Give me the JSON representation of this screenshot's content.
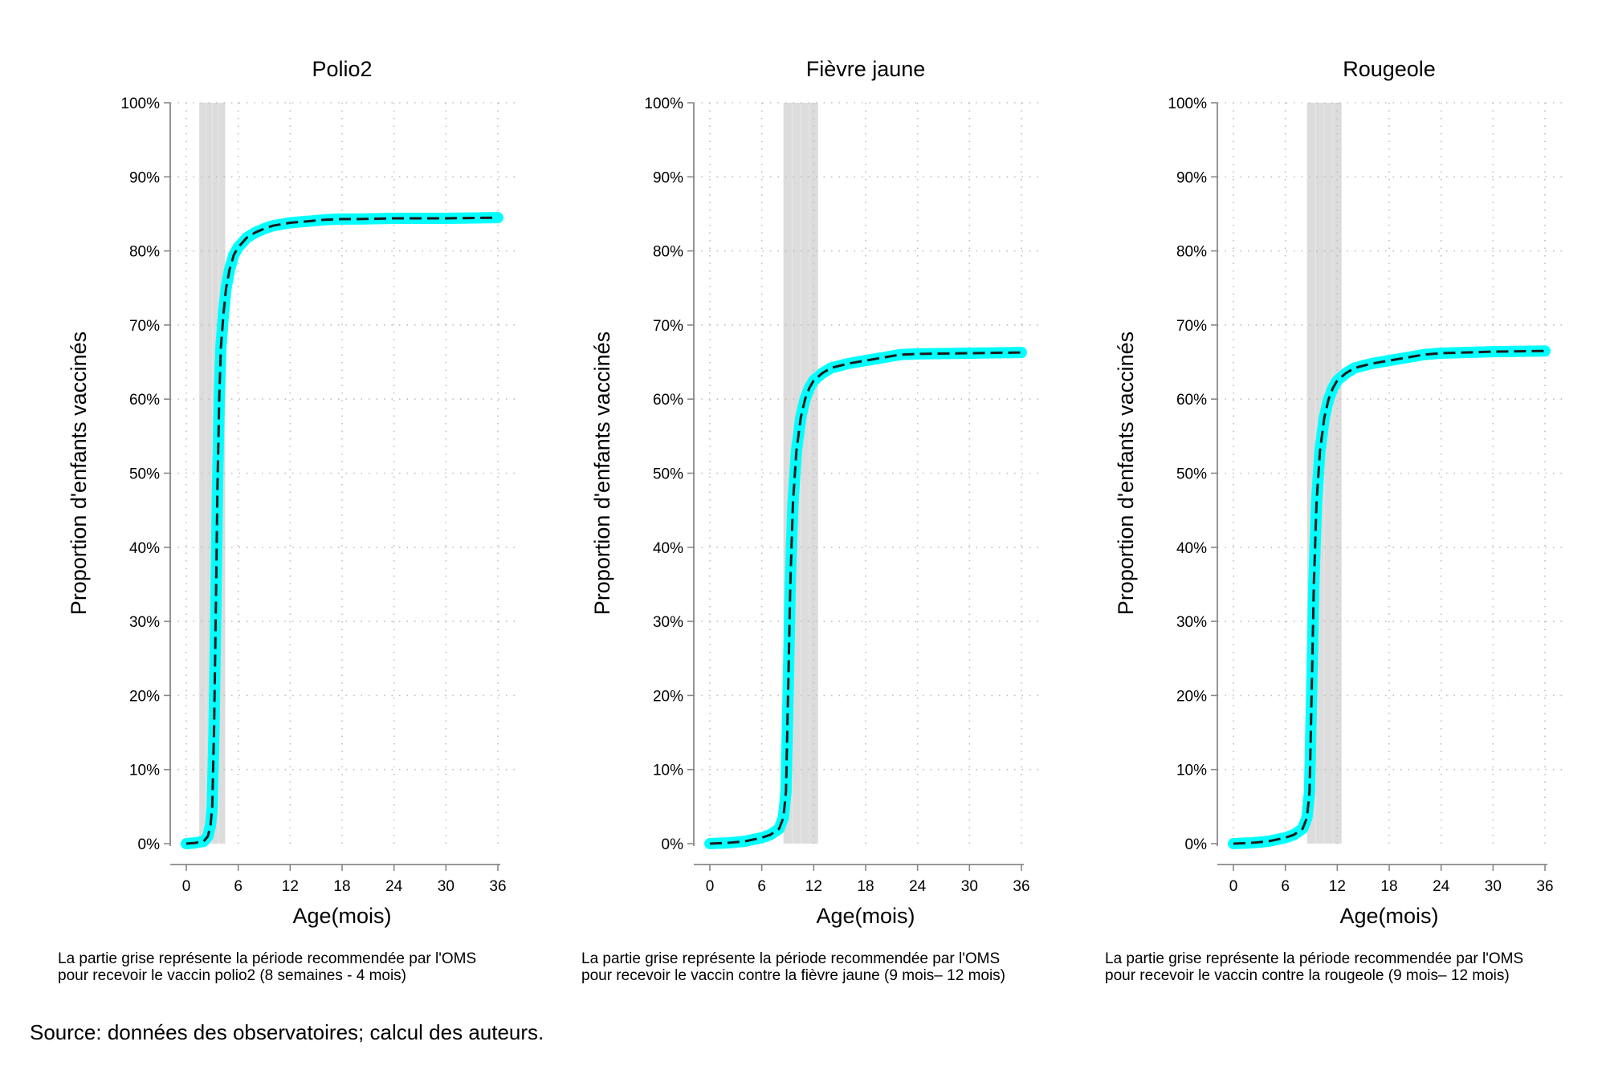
{
  "source": "Source: données des observatoires; calcul des auteurs.",
  "colors": {
    "band": "#dcdcdc",
    "curve_outer": "#00ffff",
    "curve_inner": "#1a1a1a",
    "axis": "#888888",
    "grid": "#bdbdbd"
  },
  "chart_data": [
    {
      "type": "line",
      "title": "Polio2",
      "xlabel": "Age(mois)",
      "ylabel": "Proportion d'enfants vaccinés",
      "xlim": [
        0,
        36
      ],
      "ylim": [
        0,
        100
      ],
      "x_ticks": [
        0,
        6,
        12,
        18,
        24,
        30,
        36
      ],
      "y_ticks": [
        0,
        10,
        20,
        30,
        40,
        50,
        60,
        70,
        80,
        90,
        100
      ],
      "y_tick_labels": [
        "0%",
        "10%",
        "20%",
        "30%",
        "40%",
        "50%",
        "60%",
        "70%",
        "80%",
        "90%",
        "100%"
      ],
      "grid": true,
      "shaded_band": [
        1.5,
        4.5
      ],
      "note": [
        "La partie grise représente la période recommendée par l'OMS",
        "pour recevoir le vaccin polio2 (8 semaines - 4 mois)"
      ],
      "x": [
        0,
        1,
        2,
        2.5,
        2.8,
        3,
        3.2,
        3.4,
        3.6,
        3.8,
        4,
        4.3,
        4.6,
        5,
        5.5,
        6,
        7,
        8,
        9,
        10,
        12,
        14,
        16,
        18,
        20,
        24,
        30,
        36
      ],
      "y": [
        0,
        0.1,
        0.3,
        1.0,
        2.5,
        5,
        15,
        30,
        48,
        60,
        67,
        71.5,
        75,
        77.5,
        79.5,
        80.5,
        81.8,
        82.5,
        83,
        83.4,
        83.8,
        84,
        84.2,
        84.3,
        84.3,
        84.4,
        84.4,
        84.5
      ]
    },
    {
      "type": "line",
      "title": "Fièvre jaune",
      "xlabel": "Age(mois)",
      "ylabel": "Proportion d'enfants vaccinés",
      "xlim": [
        0,
        36
      ],
      "ylim": [
        0,
        100
      ],
      "x_ticks": [
        0,
        6,
        12,
        18,
        24,
        30,
        36
      ],
      "y_ticks": [
        0,
        10,
        20,
        30,
        40,
        50,
        60,
        70,
        80,
        90,
        100
      ],
      "y_tick_labels": [
        "0%",
        "10%",
        "20%",
        "30%",
        "40%",
        "50%",
        "60%",
        "70%",
        "80%",
        "90%",
        "100%"
      ],
      "grid": true,
      "shaded_band": [
        8.5,
        12.5
      ],
      "note": [
        "La partie grise représente la période recommendée par l'OMS",
        "pour recevoir le vaccin contre la fièvre jaune (9 mois– 12 mois)"
      ],
      "x": [
        0,
        2,
        4,
        6,
        7,
        8,
        8.5,
        8.8,
        9,
        9.3,
        9.6,
        10,
        10.5,
        11,
        11.5,
        12,
        13,
        14,
        16,
        18,
        20,
        22,
        24,
        30,
        36
      ],
      "y": [
        0,
        0.1,
        0.3,
        0.8,
        1.2,
        2.0,
        3.5,
        7,
        18,
        35,
        46,
        53,
        57.5,
        60,
        61.5,
        62.5,
        63.5,
        64.2,
        64.8,
        65.2,
        65.6,
        66,
        66.1,
        66.2,
        66.3
      ]
    },
    {
      "type": "line",
      "title": "Rougeole",
      "xlabel": "Age(mois)",
      "ylabel": "Proportion d'enfants vaccinés",
      "xlim": [
        0,
        36
      ],
      "ylim": [
        0,
        100
      ],
      "x_ticks": [
        0,
        6,
        12,
        18,
        24,
        30,
        36
      ],
      "y_ticks": [
        0,
        10,
        20,
        30,
        40,
        50,
        60,
        70,
        80,
        90,
        100
      ],
      "y_tick_labels": [
        "0%",
        "10%",
        "20%",
        "30%",
        "40%",
        "50%",
        "60%",
        "70%",
        "80%",
        "90%",
        "100%"
      ],
      "grid": true,
      "shaded_band": [
        8.5,
        12.5
      ],
      "note": [
        "La partie grise représente la période recommendée par l'OMS",
        "pour recevoir le vaccin contre la rougeole (9 mois– 12 mois)"
      ],
      "x": [
        0,
        2,
        4,
        6,
        7,
        8,
        8.5,
        8.8,
        9,
        9.3,
        9.6,
        10,
        10.5,
        11,
        11.5,
        12,
        13,
        14,
        16,
        18,
        20,
        22,
        24,
        30,
        36
      ],
      "y": [
        0,
        0.1,
        0.3,
        0.8,
        1.2,
        2.0,
        3.5,
        7,
        18,
        35,
        46,
        53,
        57.5,
        60,
        61.5,
        62.5,
        63.5,
        64.2,
        64.8,
        65.2,
        65.6,
        66,
        66.2,
        66.4,
        66.5
      ]
    }
  ]
}
